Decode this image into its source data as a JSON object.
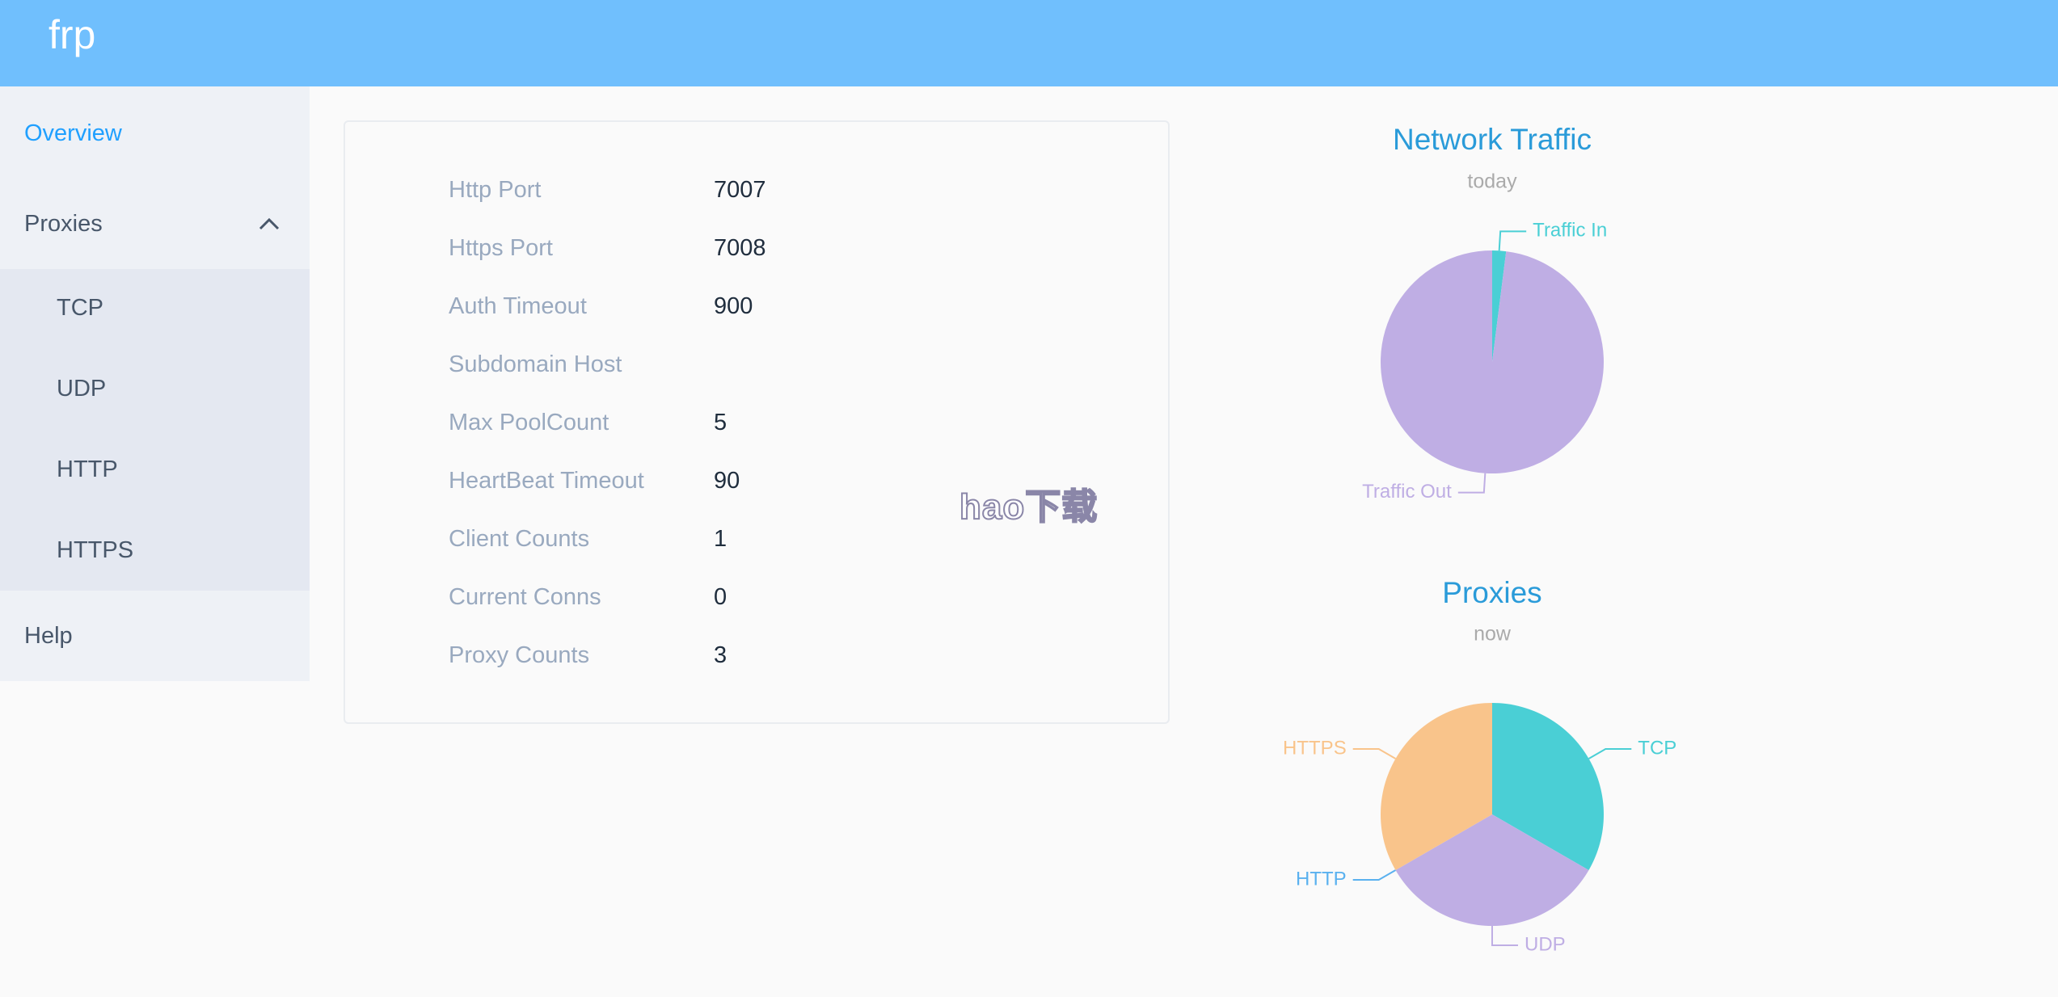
{
  "header": {
    "title": "frp"
  },
  "sidebar": {
    "overview": "Overview",
    "proxies": "Proxies",
    "proxy_types": [
      "TCP",
      "UDP",
      "HTTP",
      "HTTPS"
    ],
    "help": "Help"
  },
  "info": {
    "rows": [
      {
        "label": "Http Port",
        "value": 7007
      },
      {
        "label": "Https Port",
        "value": 7008
      },
      {
        "label": "Auth Timeout",
        "value": 900
      },
      {
        "label": "Subdomain Host"
      },
      {
        "label": "Max PoolCount",
        "value": 5
      },
      {
        "label": "HeartBeat Timeout",
        "value": 90
      },
      {
        "label": "Client Counts",
        "value": 1
      },
      {
        "label": "Current Conns",
        "value": 0
      },
      {
        "label": "Proxy Counts",
        "value": 3
      }
    ]
  },
  "watermark": "hao下载",
  "chart_data": [
    {
      "type": "pie",
      "title": "Network Traffic",
      "subtitle": "today",
      "categories": [
        "Traffic In",
        "Traffic Out"
      ],
      "values": [
        2,
        98
      ],
      "colors": [
        "#4acfd5",
        "#bfaee4"
      ]
    },
    {
      "type": "pie",
      "title": "Proxies",
      "subtitle": "now",
      "categories": [
        "TCP",
        "UDP",
        "HTTP",
        "HTTPS"
      ],
      "values": [
        1,
        1,
        0,
        1
      ],
      "colors": [
        "#4acfd5",
        "#bfaee4",
        "#5ab1ef",
        "#f9c48b"
      ]
    }
  ]
}
